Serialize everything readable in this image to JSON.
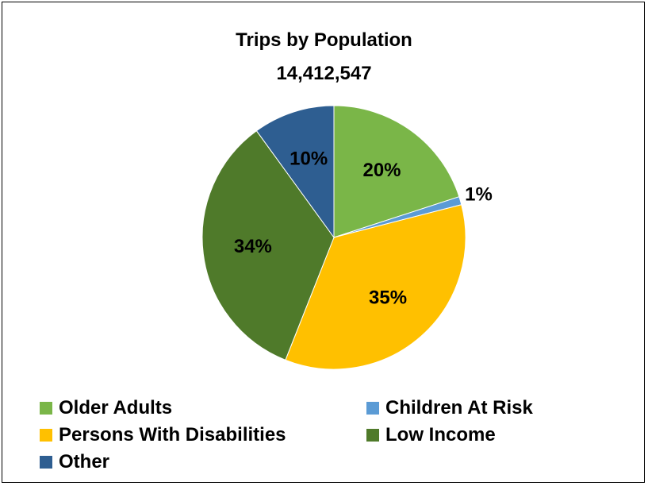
{
  "chart_data": {
    "type": "pie",
    "title": "Trips by Population",
    "subtitle": "14,412,547",
    "slices": [
      {
        "name": "Older Adults",
        "value": 20,
        "label": "20%",
        "color": "#7ab648"
      },
      {
        "name": "Children At Risk",
        "value": 1,
        "label": "1%",
        "color": "#5b9bd5"
      },
      {
        "name": "Persons With Disabilities",
        "value": 35,
        "label": "35%",
        "color": "#ffc000"
      },
      {
        "name": "Low Income",
        "value": 34,
        "label": "34%",
        "color": "#4f7a2a"
      },
      {
        "name": "Other",
        "value": 10,
        "label": "10%",
        "color": "#2e5e91"
      }
    ],
    "legend_position": "bottom"
  }
}
